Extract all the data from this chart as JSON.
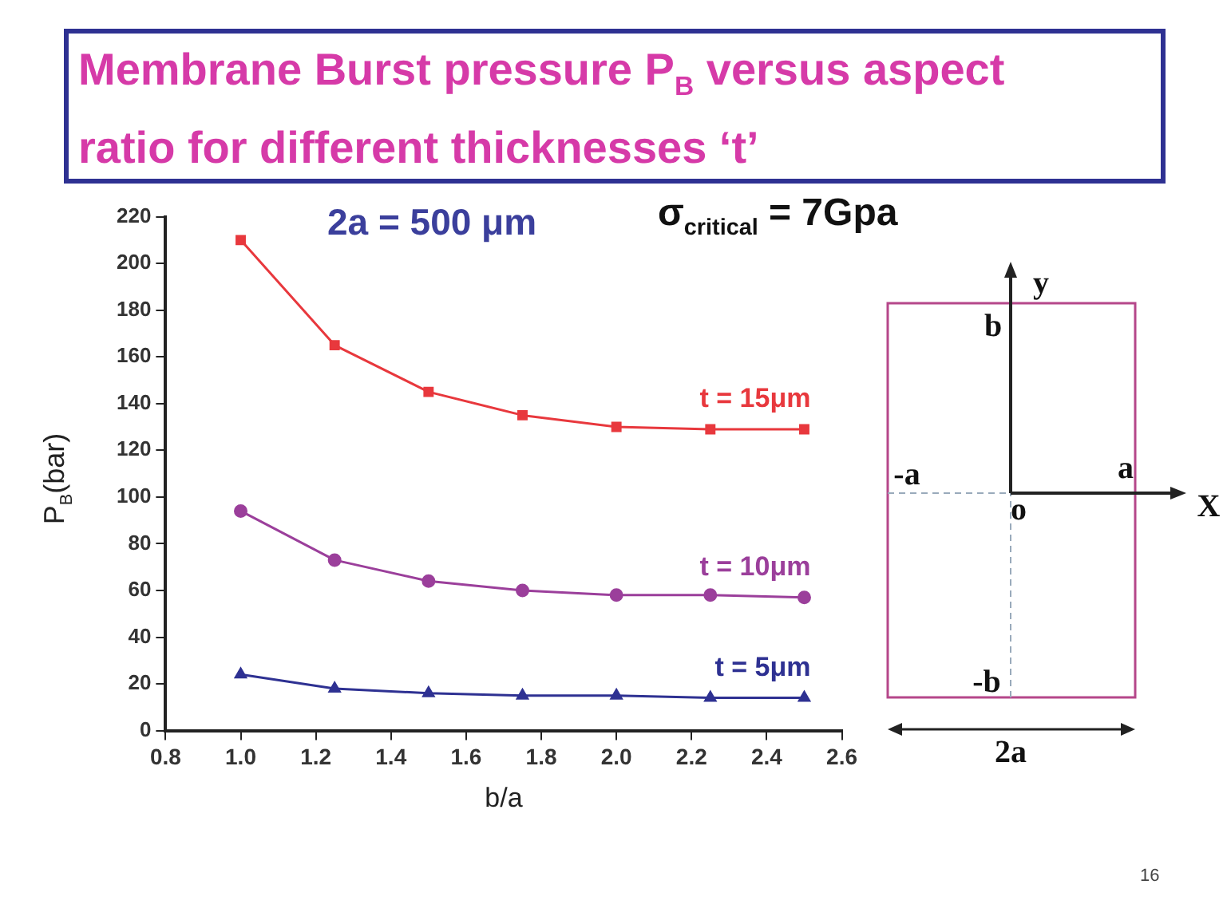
{
  "chart_data": {
    "type": "line",
    "title": "Membrane Burst pressure P$_{B}$ versus aspect ratio for different  thicknesses ‘t’",
    "subtitle": "2a = 500 μm",
    "xlabel": "b/a",
    "ylabel": "P$_{B}$(bar)",
    "x": [
      1.0,
      1.25,
      1.5,
      1.75,
      2.0,
      2.25,
      2.5
    ],
    "series": [
      {
        "name": "t = 15μm",
        "color": "#e8383d",
        "marker": "square",
        "values": [
          210,
          165,
          145,
          135,
          130,
          129,
          129
        ]
      },
      {
        "name": "t = 10μm",
        "color": "#9b3f9b",
        "marker": "circle",
        "values": [
          94,
          73,
          64,
          60,
          58,
          58,
          57
        ]
      },
      {
        "name": "t = 5μm",
        "color": "#2e3192",
        "marker": "triangle",
        "values": [
          24,
          18,
          16,
          15,
          15,
          14,
          14
        ]
      }
    ],
    "xlim": [
      0.8,
      2.6
    ],
    "xticks": [
      0.8,
      {
        "value": 1,
        "label": "1.0"
      },
      1.2,
      1.4,
      1.6,
      1.8,
      {
        "value": 2,
        "label": "2.0"
      },
      2.2,
      2.4,
      2.6
    ],
    "ylim": [
      0,
      220
    ],
    "yticks": [
      0,
      20,
      40,
      60,
      80,
      100,
      120,
      140,
      160,
      180,
      200,
      220
    ],
    "grid": false,
    "legend": false,
    "line_style": "solid",
    "annotations": [
      "σ$_{critical}$ = 7Gpa",
      "16",
      "y",
      "b",
      "-a",
      "a",
      "X",
      "o",
      "-b",
      "2a"
    ]
  }
}
